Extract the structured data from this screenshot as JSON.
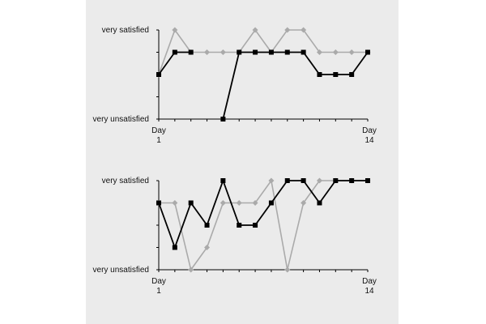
{
  "chart_data": [
    {
      "type": "line",
      "title": "",
      "y_top_label": "very satisfied",
      "y_bottom_label": "very unsatisfied",
      "ylim": [
        1,
        5
      ],
      "x_start_label": [
        "Day",
        "1"
      ],
      "x_end_label": [
        "Day",
        "14"
      ],
      "x": [
        1,
        2,
        3,
        4,
        5,
        6,
        7,
        8,
        9,
        10,
        11,
        12,
        13,
        14
      ],
      "series": [
        {
          "color": "#aaaaaa",
          "marker": "diamond",
          "values": [
            3,
            5,
            4,
            4,
            4,
            4,
            5,
            4,
            5,
            5,
            4,
            4,
            4,
            4
          ]
        },
        {
          "color": "#000000",
          "marker": "square",
          "values": [
            3,
            4,
            4,
            null,
            1,
            4,
            4,
            4,
            4,
            4,
            3,
            3,
            3,
            4
          ]
        }
      ]
    },
    {
      "type": "line",
      "title": "",
      "y_top_label": "very satisfied",
      "y_bottom_label": "very unsatisfied",
      "ylim": [
        1,
        5
      ],
      "x_start_label": [
        "Day",
        "1"
      ],
      "x_end_label": [
        "Day",
        "14"
      ],
      "x": [
        1,
        2,
        3,
        4,
        5,
        6,
        7,
        8,
        9,
        10,
        11,
        12,
        13,
        14
      ],
      "series": [
        {
          "color": "#aaaaaa",
          "marker": "diamond",
          "values": [
            4,
            4,
            1,
            2,
            4,
            4,
            4,
            5,
            1,
            4,
            5,
            5,
            5,
            5
          ]
        },
        {
          "color": "#000000",
          "marker": "square",
          "values": [
            4,
            2,
            4,
            3,
            5,
            3,
            3,
            4,
            5,
            5,
            4,
            5,
            5,
            5
          ]
        }
      ]
    }
  ]
}
